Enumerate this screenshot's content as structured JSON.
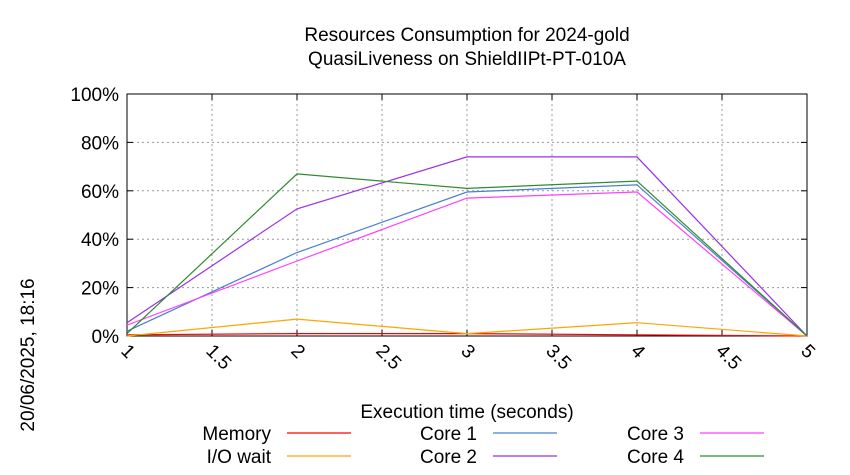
{
  "chart_data": {
    "type": "line",
    "title": "Resources Consumption for 2024-gold",
    "subtitle": "QuasiLiveness on ShieldIIPt-PT-010A",
    "xlabel": "Execution time (seconds)",
    "ylabel": "",
    "side_label": "20/06/2025, 18:16",
    "xlim": [
      1,
      5
    ],
    "ylim": [
      0,
      100
    ],
    "x_ticks": [
      "1",
      "1.5",
      "2",
      "2.5",
      "3",
      "3.5",
      "4",
      "4.5",
      "5"
    ],
    "y_ticks": [
      "0%",
      "20%",
      "40%",
      "60%",
      "80%",
      "100%"
    ],
    "grid": true,
    "legend_position": "bottom",
    "x": [
      1,
      2,
      3,
      4,
      5
    ],
    "series": [
      {
        "name": "Memory",
        "color": "#ff0000",
        "values": [
          0.5,
          1,
          1,
          0.5,
          0
        ]
      },
      {
        "name": "I/O wait",
        "color": "#ffa500",
        "values": [
          0,
          7,
          1,
          5.5,
          0
        ]
      },
      {
        "name": "Core 1",
        "color": "#4a7fd0",
        "values": [
          2,
          34.5,
          59.5,
          62.5,
          0
        ]
      },
      {
        "name": "Core 2",
        "color": "#9a30e8",
        "values": [
          5.5,
          52.5,
          74,
          74,
          0
        ]
      },
      {
        "name": "Core 3",
        "color": "#ff40ff",
        "values": [
          4.5,
          31,
          57,
          59.5,
          0
        ]
      },
      {
        "name": "Core 4",
        "color": "#2e8b2e",
        "values": [
          1,
          67,
          61,
          64,
          0
        ]
      }
    ]
  }
}
